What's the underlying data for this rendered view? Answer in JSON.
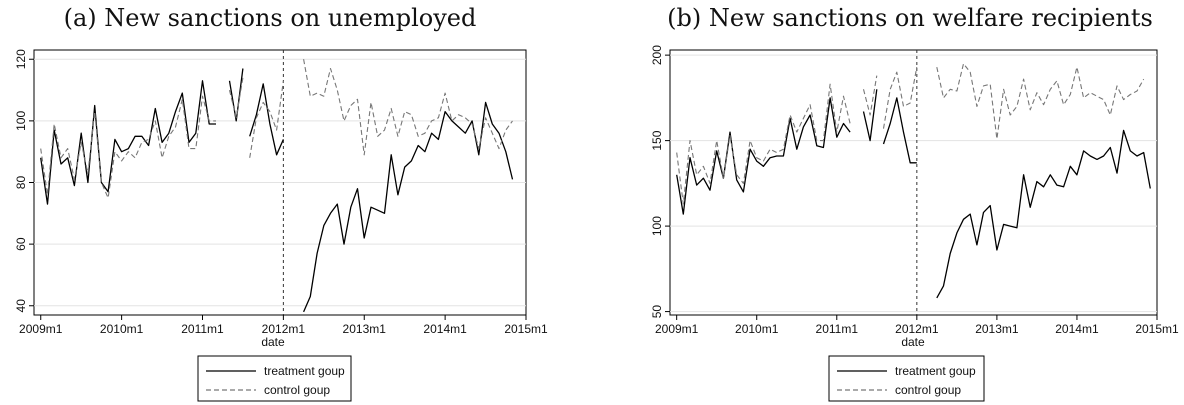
{
  "chart_data": [
    {
      "type": "line",
      "title": "(a) New sanctions on unemployed",
      "xlabel": "date",
      "ylabel": "",
      "xlim": [
        "2008m12",
        "2015m1"
      ],
      "ylim": [
        37,
        123
      ],
      "x_ticks": [
        "2009m1",
        "2010m1",
        "2011m1",
        "2012m1",
        "2013m1",
        "2014m1",
        "2015m1"
      ],
      "y_ticks": [
        "40",
        "60",
        "80",
        "100",
        "120"
      ],
      "grid": "horizontal",
      "legend_position": "bottom",
      "vline_at": "2012m1",
      "series": [
        {
          "name": "treatment goup",
          "style": "solid",
          "color": "#000000",
          "segments": [
            {
              "start": "2009m1",
              "values": [
                88,
                73,
                97,
                86,
                88,
                79,
                96,
                80,
                105,
                80,
                77,
                94,
                90,
                91,
                95,
                95,
                92,
                104,
                93,
                96,
                103,
                109,
                93,
                96,
                113,
                99,
                99,
                null,
                113,
                100,
                117
              ]
            },
            {
              "start": "2011m8",
              "values": [
                95,
                102,
                112,
                99,
                89,
                94
              ]
            },
            {
              "start": "2012m4",
              "values": [
                38,
                43,
                57,
                66,
                70,
                73,
                60,
                72,
                78,
                62,
                72,
                71,
                70,
                89,
                76,
                85,
                87,
                92,
                90,
                96,
                94,
                103,
                100,
                98,
                96,
                100,
                89,
                106,
                99,
                96,
                90,
                81
              ]
            }
          ]
        },
        {
          "name": "control goup",
          "style": "dashed",
          "color": "#777777",
          "segments": [
            {
              "start": "2009m1",
              "values": [
                91,
                76,
                99,
                88,
                91,
                81,
                93,
                83,
                103,
                80,
                75,
                90,
                87,
                90,
                88,
                93,
                94,
                100,
                88,
                95,
                98,
                107,
                91,
                91,
                108,
                100,
                100,
                null,
                110,
                101,
                114
              ]
            },
            {
              "start": "2011m8",
              "values": [
                88,
                101,
                106,
                103,
                97,
                113
              ]
            },
            {
              "start": "2012m4",
              "values": [
                120,
                108,
                109,
                108,
                117,
                110,
                100,
                105,
                107,
                89,
                106,
                95,
                97,
                104,
                95,
                103,
                102,
                95,
                96,
                100,
                101,
                109,
                100,
                102,
                101,
                99,
                91,
                101,
                96,
                91,
                97,
                100
              ]
            }
          ]
        }
      ]
    },
    {
      "type": "line",
      "title": "(b) New sanctions on welfare recipients",
      "xlabel": "date",
      "ylabel": "",
      "xlim": [
        "2008m12",
        "2015m1"
      ],
      "ylim": [
        48,
        203
      ],
      "x_ticks": [
        "2009m1",
        "2010m1",
        "2011m1",
        "2012m1",
        "2013m1",
        "2014m1",
        "2015m1"
      ],
      "y_ticks": [
        "50",
        "100",
        "150",
        "200"
      ],
      "grid": "horizontal",
      "legend_position": "bottom",
      "vline_at": "2012m1",
      "series": [
        {
          "name": "treatment goup",
          "style": "solid",
          "color": "#000000",
          "segments": [
            {
              "start": "2009m1",
              "values": [
                130,
                107,
                140,
                124,
                128,
                121,
                144,
                128,
                155,
                127,
                120,
                145,
                138,
                135,
                140,
                141,
                141,
                163,
                145,
                158,
                165,
                147,
                146,
                175,
                152,
                160,
                155,
                null,
                167,
                150,
                180
              ]
            },
            {
              "start": "2011m8",
              "values": [
                148,
                160,
                175,
                155,
                137,
                137
              ]
            },
            {
              "start": "2012m4",
              "values": [
                58,
                65,
                84,
                96,
                104,
                107,
                89,
                108,
                112,
                86,
                101,
                100,
                99,
                130,
                111,
                126,
                123,
                130,
                124,
                123,
                135,
                130,
                144,
                141,
                139,
                141,
                146,
                131,
                156,
                144,
                141,
                143,
                122
              ]
            }
          ]
        },
        {
          "name": "control goup",
          "style": "dashed",
          "color": "#777777",
          "segments": [
            {
              "start": "2009m1",
              "values": [
                143,
                113,
                150,
                130,
                135,
                125,
                150,
                128,
                153,
                130,
                125,
                150,
                140,
                138,
                145,
                143,
                145,
                165,
                155,
                163,
                171,
                150,
                150,
                183,
                155,
                176,
                160,
                null,
                180,
                165,
                188
              ]
            },
            {
              "start": "2011m8",
              "values": [
                157,
                180,
                190,
                170,
                172,
                193
              ]
            },
            {
              "start": "2012m4",
              "values": [
                193,
                175,
                180,
                179,
                195,
                190,
                170,
                182,
                183,
                151,
                180,
                165,
                170,
                186,
                168,
                178,
                171,
                180,
                185,
                171,
                177,
                193,
                175,
                178,
                176,
                174,
                165,
                182,
                174,
                177,
                179,
                186
              ]
            }
          ]
        }
      ]
    }
  ]
}
